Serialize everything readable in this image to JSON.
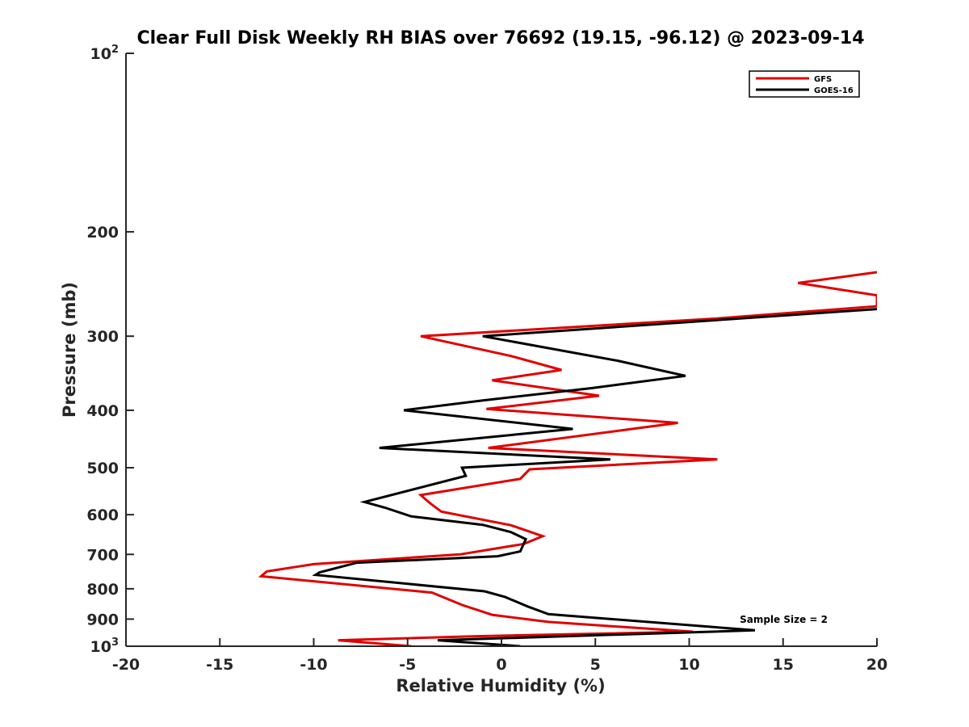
{
  "chart_data": {
    "type": "line",
    "title": "Clear Full Disk Weekly RH BIAS over 76692 (19.15, -96.12) @ 2023-09-14",
    "xlabel": "Relative Humidity (%)",
    "ylabel": "Pressure (mb)",
    "xlim": [
      -20,
      20
    ],
    "ylim": [
      100,
      1000
    ],
    "yscale": "log",
    "y_reversed": true,
    "x_ticks": [
      -20,
      -15,
      -10,
      -5,
      0,
      5,
      10,
      15,
      20
    ],
    "x_tick_labels": [
      "-20",
      "-15",
      "-10",
      "-5",
      "0",
      "5",
      "10",
      "15",
      "20"
    ],
    "y_ticks": [
      200,
      300,
      400,
      500,
      600,
      700,
      800,
      900
    ],
    "y_tick_labels": [
      "200",
      "300",
      "400",
      "500",
      "600",
      "700",
      "800",
      "900"
    ],
    "y_end_labels": [
      {
        "value": 100,
        "base": "10",
        "exp": "2"
      },
      {
        "value": 1000,
        "base": "10",
        "exp": "3"
      }
    ],
    "legend_position": "top-right",
    "annotation": "Sample Size = 2",
    "series": [
      {
        "name": "GFS",
        "color": "#e00000",
        "points": [
          [
            20,
            234
          ],
          [
            15.8,
            244
          ],
          [
            20,
            256
          ],
          [
            20,
            267
          ],
          [
            11.5,
            280
          ],
          [
            -4.3,
            300
          ],
          [
            0.5,
            324
          ],
          [
            3.2,
            342
          ],
          [
            -0.5,
            356
          ],
          [
            5.2,
            378
          ],
          [
            -0.8,
            398
          ],
          [
            9.4,
            420
          ],
          [
            -0.7,
            463
          ],
          [
            11.5,
            484
          ],
          [
            1.5,
            503
          ],
          [
            1,
            522
          ],
          [
            -4.3,
            556
          ],
          [
            -3.8,
            574
          ],
          [
            -3.2,
            593
          ],
          [
            0.5,
            625
          ],
          [
            2.2,
            652
          ],
          [
            1.2,
            672
          ],
          [
            -2.2,
            700
          ],
          [
            -10,
            727
          ],
          [
            -12.5,
            748
          ],
          [
            -12.8,
            762
          ],
          [
            -3.7,
            812
          ],
          [
            -2.1,
            852
          ],
          [
            -0.5,
            885
          ],
          [
            2.5,
            910
          ],
          [
            10.2,
            945
          ],
          [
            -1.5,
            962
          ],
          [
            -8.7,
            977
          ],
          [
            -4.8,
            1000
          ]
        ]
      },
      {
        "name": "GOES-16",
        "color": "#000000",
        "points": [
          [
            20,
            270
          ],
          [
            -1,
            300
          ],
          [
            6.2,
            330
          ],
          [
            9.8,
            350
          ],
          [
            4.8,
            367
          ],
          [
            -1,
            385
          ],
          [
            -5.2,
            400
          ],
          [
            3.8,
            430
          ],
          [
            -6.5,
            463
          ],
          [
            5.8,
            484
          ],
          [
            -2.1,
            500
          ],
          [
            -1.9,
            516
          ],
          [
            -7.3,
            571
          ],
          [
            -6.2,
            584
          ],
          [
            -4.8,
            604
          ],
          [
            -1,
            624
          ],
          [
            0.5,
            642
          ],
          [
            1.3,
            660
          ],
          [
            1,
            692
          ],
          [
            -0.2,
            705
          ],
          [
            -7.7,
            723
          ],
          [
            -9.7,
            751
          ],
          [
            -9.9,
            758
          ],
          [
            -0.9,
            808
          ],
          [
            0.2,
            826
          ],
          [
            1.4,
            857
          ],
          [
            2.5,
            883
          ],
          [
            13.5,
            940
          ],
          [
            -3.4,
            977
          ],
          [
            1,
            1000
          ]
        ]
      }
    ]
  }
}
